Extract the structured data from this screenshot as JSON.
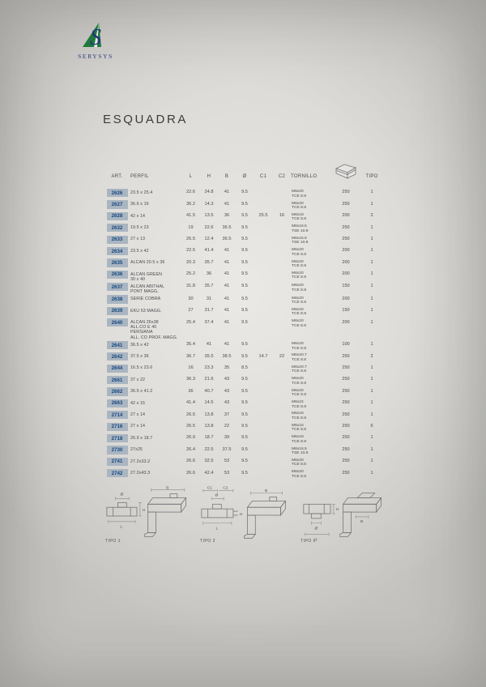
{
  "logo": {
    "brand": "SERYSYS",
    "green": "#1d7a3c",
    "blue": "#27357e"
  },
  "page": {
    "title": "ESQUADRA"
  },
  "table": {
    "headers": {
      "art": "ART.",
      "perfil": "PERFIL",
      "l": "L",
      "h": "H",
      "b": "B",
      "o": "Ø",
      "c1": "C1",
      "c2": "C2",
      "tornillo": "TORNILLO",
      "tipo": "TIPO"
    },
    "package_icon": "package-box-icon",
    "rows": [
      {
        "art": "2626",
        "perfil": [
          "23.5 x 25.4"
        ],
        "l": "22.6",
        "h": "24.8",
        "b": "41",
        "o": "9.5",
        "c1": "",
        "c2": "",
        "tornillo": [
          "M6x20",
          "TCE 8.8"
        ],
        "qty": "250",
        "tipo": "1"
      },
      {
        "art": "2627",
        "perfil": [
          "36.6 x 16"
        ],
        "l": "36.2",
        "h": "14.3",
        "b": "41",
        "o": "9.5",
        "c1": "",
        "c2": "",
        "tornillo": [
          "M6x20",
          "TCE 8.8"
        ],
        "qty": "250",
        "tipo": "1"
      },
      {
        "art": "2628",
        "perfil": [
          "42 x 14"
        ],
        "l": "41.5",
        "h": "13.5",
        "b": "36",
        "o": "9.5",
        "c1": "25.5",
        "c2": "16",
        "tornillo": [
          "M6x18",
          "TCE 8.8"
        ],
        "qty": "200",
        "tipo": "2"
      },
      {
        "art": "2632",
        "perfil": [
          "19.5 x 23"
        ],
        "l": "19",
        "h": "22.6",
        "b": "36.5",
        "o": "9.5",
        "c1": "",
        "c2": "",
        "tornillo": [
          "M6x16.5",
          "TSE 10.9"
        ],
        "qty": "250",
        "tipo": "1"
      },
      {
        "art": "2633",
        "perfil": [
          "27 x 13"
        ],
        "l": "26.5",
        "h": "12.4",
        "b": "36.5",
        "o": "9.5",
        "c1": "",
        "c2": "",
        "tornillo": [
          "M6x16.5",
          "TSE 10.9"
        ],
        "qty": "250",
        "tipo": "1"
      },
      {
        "art": "2634",
        "perfil": [
          "23.5 x 42"
        ],
        "l": "22.5",
        "h": "41.4",
        "b": "41",
        "o": "9.5",
        "c1": "",
        "c2": "",
        "tornillo": [
          "M6x20",
          "TCE 8.8"
        ],
        "qty": "200",
        "tipo": "1"
      },
      {
        "art": "2635",
        "perfil": [
          "ALCAN 20.5 x 36"
        ],
        "l": "20.3",
        "h": "35.7",
        "b": "41",
        "o": "9.5",
        "c1": "",
        "c2": "",
        "tornillo": [
          "M6x20",
          "TCE 8.8"
        ],
        "qty": "200",
        "tipo": "1"
      },
      {
        "art": "2636",
        "perfil": [
          "ALCAN GREEN",
          "30 x 40"
        ],
        "l": "25.2",
        "h": "36",
        "b": "41",
        "o": "9.5",
        "c1": "",
        "c2": "",
        "tornillo": [
          "M6x20",
          "TCE 8.8"
        ],
        "qty": "200",
        "tipo": "1"
      },
      {
        "art": "2637",
        "perfil": [
          "ALCAN ABITHAL",
          "PONT MAGG."
        ],
        "l": "31.8",
        "h": "35.7",
        "b": "41",
        "o": "9.5",
        "c1": "",
        "c2": "",
        "tornillo": [
          "M6x20",
          "TCE 8.8"
        ],
        "qty": "150",
        "tipo": "1"
      },
      {
        "art": "2638",
        "perfil": [
          "SERIE COBRA"
        ],
        "l": "30",
        "h": "31",
        "b": "41",
        "o": "9.5",
        "c1": "",
        "c2": "",
        "tornillo": [
          "M6x20",
          "TCE 8.8"
        ],
        "qty": "200",
        "tipo": "1"
      },
      {
        "art": "2639",
        "perfil": [
          "EKU 53 MAGG."
        ],
        "l": "27",
        "h": "31.7",
        "b": "41",
        "o": "9.5",
        "c1": "",
        "c2": "",
        "tornillo": [
          "M6x20",
          "TCE 8.8"
        ],
        "qty": "150",
        "tipo": "1"
      },
      {
        "art": "2640",
        "perfil": [
          "ALCAN 26x38",
          "ALL.CO E 40",
          "PERSIANA",
          "ALL. CO PROF. MAGG."
        ],
        "l": "25.4",
        "h": "37.4",
        "b": "41",
        "o": "9.5",
        "c1": "",
        "c2": "",
        "tornillo": [
          "M6x20",
          "TCE 8.8"
        ],
        "qty": "200",
        "tipo": "1"
      },
      {
        "art": "2641",
        "perfil": [
          "36.5 x 42"
        ],
        "l": "35.4",
        "h": "41",
        "b": "41",
        "o": "9.5",
        "c1": "",
        "c2": "",
        "tornillo": [
          "M6x20",
          "TCE 8.8"
        ],
        "qty": "100",
        "tipo": "1"
      },
      {
        "art": "2642",
        "perfil": [
          "37.5 x 36"
        ],
        "l": "36.7",
        "h": "35.5",
        "b": "38.5",
        "o": "9.5",
        "c1": "14.7",
        "c2": "22",
        "tornillo": [
          "M6x20.7",
          "TCE 8.8"
        ],
        "qty": "250",
        "tipo": "2"
      },
      {
        "art": "2644",
        "perfil": [
          "16.5 x 23.6"
        ],
        "l": "16",
        "h": "23.3",
        "b": "35",
        "o": "8.5",
        "c1": "",
        "c2": "",
        "tornillo": [
          "M6x20.7",
          "TCE 8.8"
        ],
        "qty": "250",
        "tipo": "1"
      },
      {
        "art": "2661",
        "perfil": [
          "37 x 22"
        ],
        "l": "36.3",
        "h": "21.6",
        "b": "43",
        "o": "9.5",
        "c1": "",
        "c2": "",
        "tornillo": [
          "M6x20",
          "TCE 8.8"
        ],
        "qty": "250",
        "tipo": "1"
      },
      {
        "art": "2662",
        "perfil": [
          "36.5 x 41.2"
        ],
        "l": "36",
        "h": "40.7",
        "b": "43",
        "o": "9.5",
        "c1": "",
        "c2": "",
        "tornillo": [
          "M6x20",
          "TCE 8.8"
        ],
        "qty": "250",
        "tipo": "1"
      },
      {
        "art": "2663",
        "perfil": [
          "42 x 15"
        ],
        "l": "41.4",
        "h": "14.5",
        "b": "43",
        "o": "9.5",
        "c1": "",
        "c2": "",
        "tornillo": [
          "M6x22",
          "TCE 8.8"
        ],
        "qty": "250",
        "tipo": "1"
      },
      {
        "art": "2714",
        "perfil": [
          "27 x 14"
        ],
        "l": "26.5",
        "h": "13.8",
        "b": "37",
        "o": "9.5",
        "c1": "",
        "c2": "",
        "tornillo": [
          "M5x16",
          "TCE 8.8"
        ],
        "qty": "250",
        "tipo": "1"
      },
      {
        "art": "2716",
        "perfil": [
          "27 x 14"
        ],
        "l": "26.5",
        "h": "13.8",
        "b": "22",
        "o": "9.5",
        "c1": "",
        "c2": "",
        "tornillo": [
          "M5x16",
          "TCE 8.8"
        ],
        "qty": "250",
        "tipo": "6"
      },
      {
        "art": "2718",
        "perfil": [
          "26.9 x 18.7"
        ],
        "l": "26.9",
        "h": "18.7",
        "b": "39",
        "o": "9.5",
        "c1": "",
        "c2": "",
        "tornillo": [
          "M6x18",
          "TCE 8.8"
        ],
        "qty": "250",
        "tipo": "1"
      },
      {
        "art": "2730",
        "perfil": [
          "27x25"
        ],
        "l": "26.4",
        "h": "22.5",
        "b": "37.5",
        "o": "9.5",
        "c1": "",
        "c2": "",
        "tornillo": [
          "M6x16.5",
          "TSE 10.9"
        ],
        "qty": "250",
        "tipo": "1"
      },
      {
        "art": "2741",
        "perfil": [
          "27.2x33.2"
        ],
        "l": "26.6",
        "h": "32.5",
        "b": "53",
        "o": "9.5",
        "c1": "",
        "c2": "",
        "tornillo": [
          "M6x20",
          "TCE 8.8"
        ],
        "qty": "250",
        "tipo": "1"
      },
      {
        "art": "2742",
        "perfil": [
          "27.2x43.3"
        ],
        "l": "26.6",
        "h": "42.4",
        "b": "53",
        "o": "9.5",
        "c1": "",
        "c2": "",
        "tornillo": [
          "M6x20",
          "TCE 8.8"
        ],
        "qty": "250",
        "tipo": "1"
      }
    ]
  },
  "diagrams": [
    {
      "label": "TIPO 1",
      "dims": {
        "o": "Ø",
        "h": "H",
        "l": "L",
        "b": "B"
      }
    },
    {
      "label": "TIPO 2",
      "dims": {
        "c1": "C1",
        "c2": "C2",
        "o": "Ø",
        "h": "H",
        "l": "L",
        "b": "B"
      }
    },
    {
      "label": "TIPO 6",
      "dims": {
        "h": "H",
        "o": "Ø",
        "l": "L",
        "b": "B"
      }
    }
  ]
}
